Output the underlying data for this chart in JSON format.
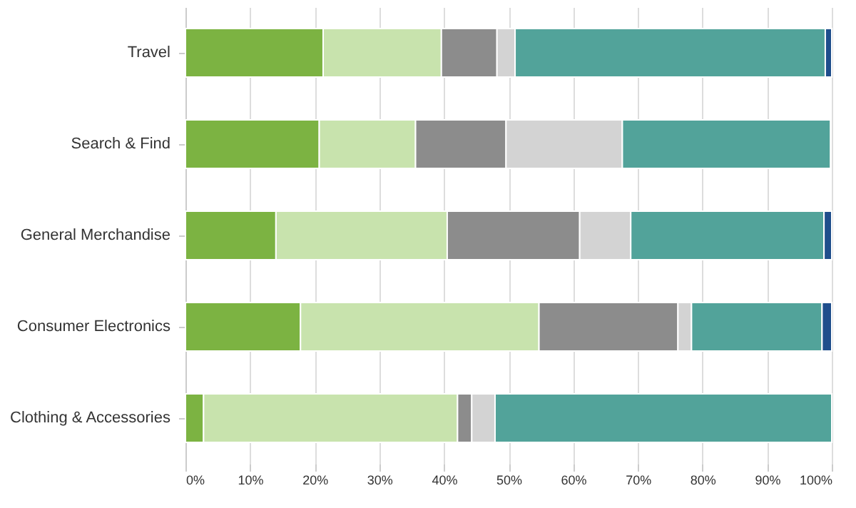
{
  "chart_data": {
    "type": "bar",
    "orientation": "horizontal",
    "stacked": true,
    "categories": [
      "Travel",
      "Search & Find",
      "General Merchandise",
      "Consumer Electronics",
      "Clothing & Accessories"
    ],
    "series": [
      {
        "color": "#7cb342",
        "values": [
          21.3,
          20.7,
          14.0,
          17.8,
          2.8
        ]
      },
      {
        "color": "#c8e3ad",
        "values": [
          18.3,
          14.9,
          26.5,
          36.9,
          39.3
        ]
      },
      {
        "color": "#8c8c8c",
        "values": [
          8.6,
          14.0,
          20.5,
          21.5,
          2.2
        ]
      },
      {
        "color": "#d3d3d3",
        "values": [
          2.8,
          18.0,
          7.9,
          2.1,
          3.6
        ]
      },
      {
        "color": "#52a39a",
        "values": [
          48.0,
          32.2,
          29.9,
          20.2,
          52.1
        ]
      },
      {
        "color": "#1f4e8c",
        "values": [
          1.0,
          null,
          1.2,
          1.5,
          null
        ]
      }
    ],
    "xlim": [
      0,
      100
    ],
    "xticks": [
      {
        "value": 0,
        "label": "0%"
      },
      {
        "value": 10,
        "label": "10%"
      },
      {
        "value": 20,
        "label": "20%"
      },
      {
        "value": 30,
        "label": "30%"
      },
      {
        "value": 40,
        "label": "40%"
      },
      {
        "value": 50,
        "label": "50%"
      },
      {
        "value": 60,
        "label": "60%"
      },
      {
        "value": 70,
        "label": "70%"
      },
      {
        "value": 80,
        "label": "80%"
      },
      {
        "value": 90,
        "label": "90%"
      },
      {
        "value": 100,
        "label": "100%"
      }
    ],
    "grid": "x",
    "legend": false
  }
}
